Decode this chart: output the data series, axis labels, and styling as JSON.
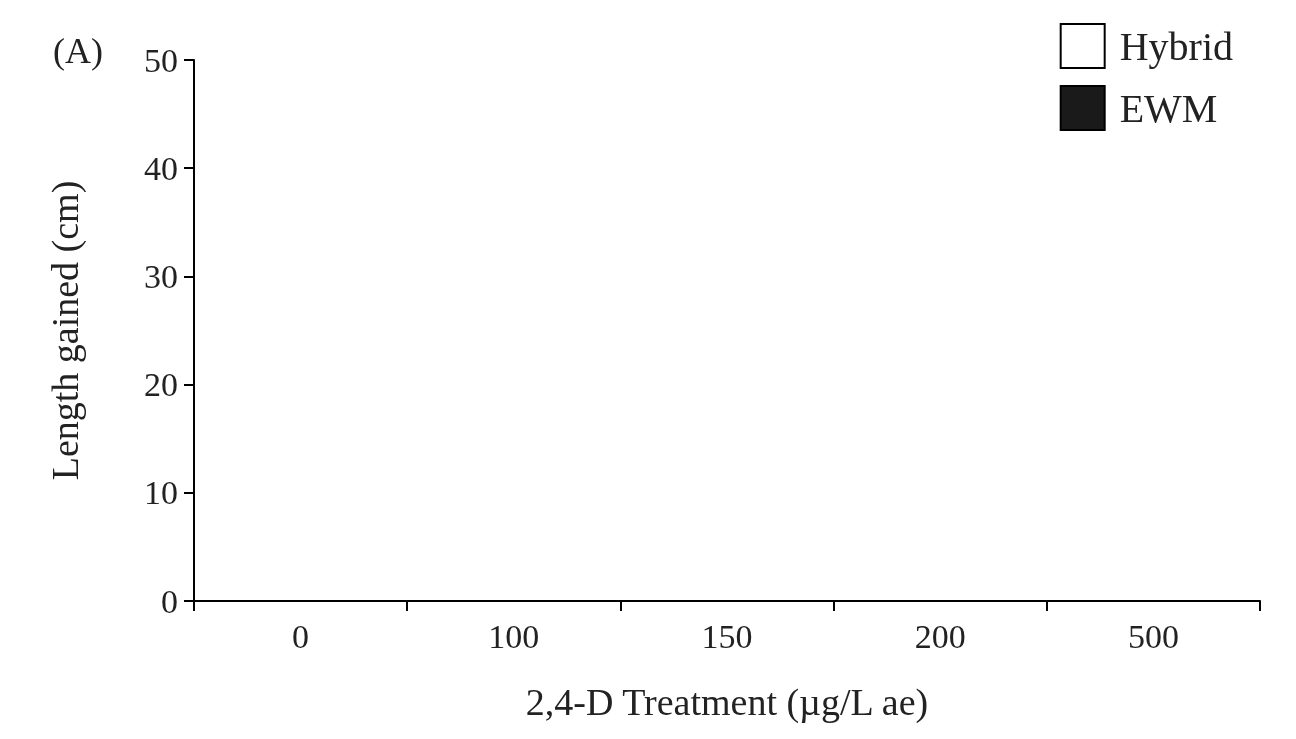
{
  "chart_data": {
    "type": "bar",
    "title": "(A)",
    "xlabel": "2,4-D Treatment (µg/L ae)",
    "ylabel": "Length gained (cm)",
    "categories": [
      "0",
      "100",
      "150",
      "200",
      "500"
    ],
    "series": [
      {
        "name": "Hybrid",
        "color": "#ffffff",
        "values": [
          0,
          0,
          0,
          0,
          0
        ]
      },
      {
        "name": "EWM",
        "color": "#1a1a1a",
        "values": [
          0,
          0,
          0,
          0,
          0
        ]
      }
    ],
    "ylim": [
      0,
      50
    ],
    "yticks": [
      0,
      10,
      20,
      30,
      40,
      50
    ],
    "grid": false,
    "legend": "top right"
  }
}
